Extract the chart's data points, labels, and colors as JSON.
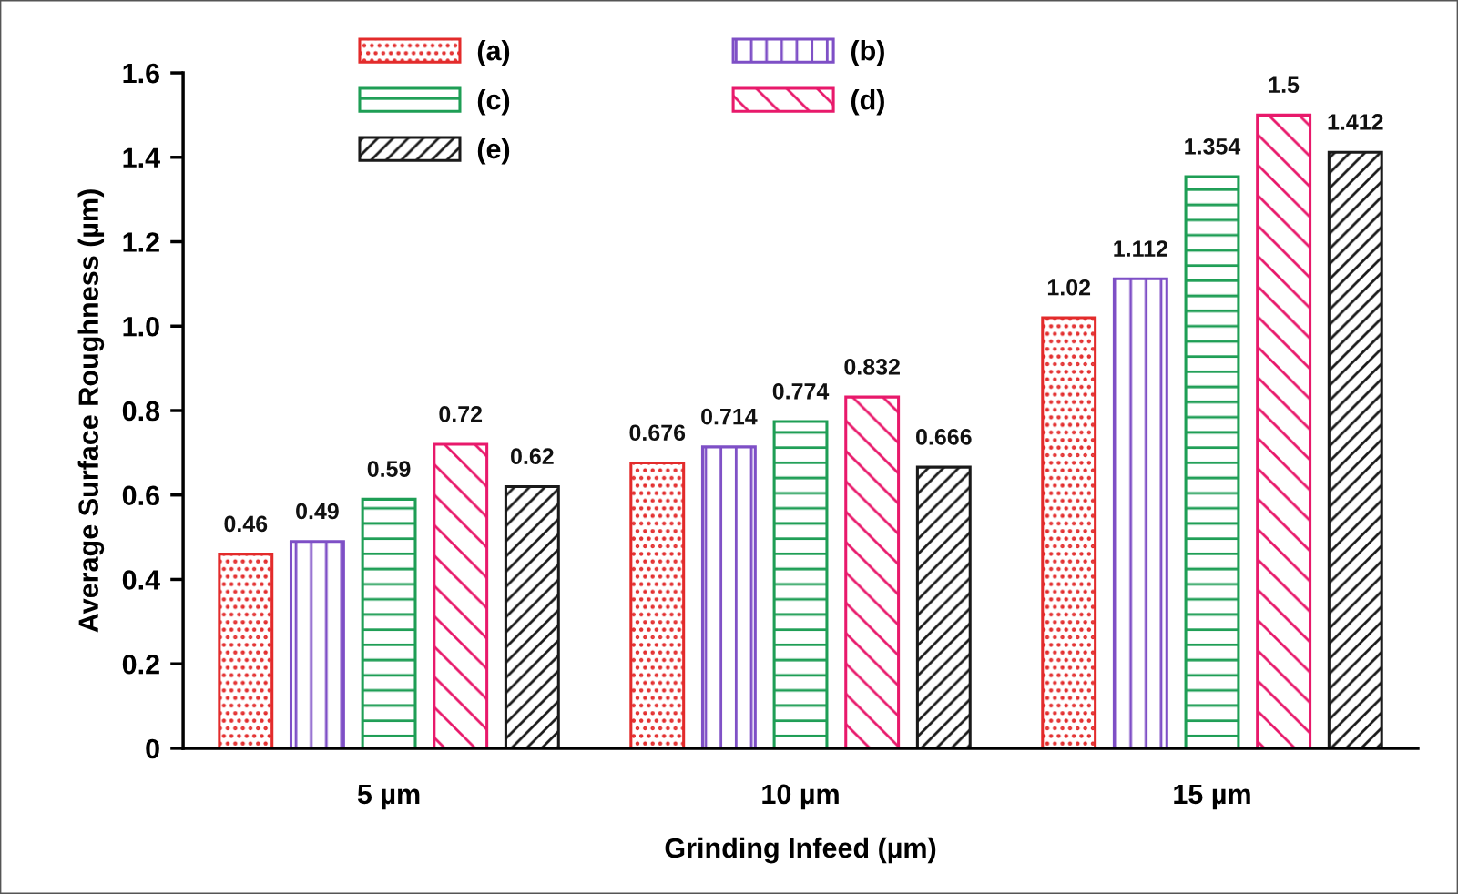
{
  "chart_data": {
    "type": "bar",
    "xlabel": "Grinding Infeed (µm)",
    "ylabel": "Average Surface Roughness (µm)",
    "categories": [
      "5 µm",
      "10 µm",
      "15 µm"
    ],
    "series": [
      {
        "name": "(a)",
        "color": "#e32b2b",
        "values": [
          0.46,
          0.676,
          1.02
        ]
      },
      {
        "name": "(b)",
        "color": "#7e4fc6",
        "values": [
          0.49,
          0.714,
          1.112
        ]
      },
      {
        "name": "(c)",
        "color": "#1e9e55",
        "values": [
          0.59,
          0.774,
          1.354
        ]
      },
      {
        "name": "(d)",
        "color": "#e8196b",
        "values": [
          0.72,
          0.832,
          1.5
        ]
      },
      {
        "name": "(e)",
        "color": "#1a1a1a",
        "values": [
          0.62,
          0.666,
          1.412
        ]
      }
    ],
    "ylim": [
      0,
      1.6
    ],
    "yticks": [
      0,
      0.2,
      0.4,
      0.6,
      0.8,
      {
        "value": 1,
        "label": "1.0"
      },
      1.2,
      1.4,
      1.6
    ],
    "grid": false,
    "legend": "top left",
    "data_labels": true
  }
}
